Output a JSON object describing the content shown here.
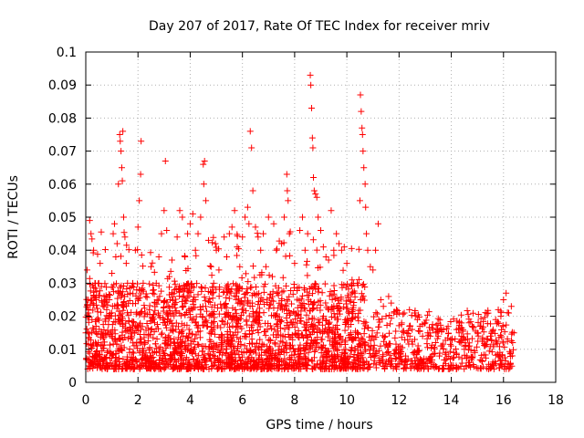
{
  "chart_data": {
    "type": "scatter",
    "title": "Day 207 of 2017, Rate Of TEC Index for receiver mriv",
    "xlabel": "GPS time / hours",
    "ylabel": "ROTI / TECUs",
    "xlim": [
      0,
      18
    ],
    "ylim": [
      0,
      0.1
    ],
    "xticks": [
      0,
      2,
      4,
      6,
      8,
      10,
      12,
      14,
      16,
      18
    ],
    "xtick_labels": [
      "0",
      "2",
      "4",
      "6",
      "8",
      "10",
      "12",
      "14",
      "16",
      "18"
    ],
    "yticks": [
      0,
      0.01,
      0.02,
      0.03,
      0.04,
      0.05,
      0.06,
      0.07,
      0.08,
      0.09,
      0.1
    ],
    "ytick_labels": [
      "0",
      "0.01",
      "0.02",
      "0.03",
      "0.04",
      "0.05",
      "0.06",
      "0.07",
      "0.08",
      "0.09",
      "0.1"
    ],
    "grid": true,
    "marker": "+",
    "color": "#ff0000",
    "series": [
      {
        "name": "ROTI",
        "points": [
          [
            0.05,
            0.034
          ],
          [
            0.1,
            0.021
          ],
          [
            0.15,
            0.049
          ],
          [
            0.2,
            0.045
          ],
          [
            0.3,
            0.04
          ],
          [
            0.35,
            0.03
          ],
          [
            0.4,
            0.025
          ],
          [
            0.5,
            0.03
          ],
          [
            0.55,
            0.036
          ],
          [
            0.6,
            0.029
          ],
          [
            0.7,
            0.026
          ],
          [
            0.8,
            0.022
          ],
          [
            0.9,
            0.025
          ],
          [
            1.0,
            0.033
          ],
          [
            1.05,
            0.045
          ],
          [
            1.1,
            0.048
          ],
          [
            1.15,
            0.038
          ],
          [
            1.2,
            0.042
          ],
          [
            1.25,
            0.06
          ],
          [
            1.3,
            0.075
          ],
          [
            1.32,
            0.073
          ],
          [
            1.35,
            0.07
          ],
          [
            1.38,
            0.065
          ],
          [
            1.4,
            0.061
          ],
          [
            1.42,
            0.076
          ],
          [
            1.45,
            0.05
          ],
          [
            1.5,
            0.044
          ],
          [
            1.55,
            0.036
          ],
          [
            1.6,
            0.03
          ],
          [
            1.7,
            0.027
          ],
          [
            1.8,
            0.03
          ],
          [
            1.9,
            0.04
          ],
          [
            2.0,
            0.047
          ],
          [
            2.05,
            0.055
          ],
          [
            2.1,
            0.063
          ],
          [
            2.12,
            0.073
          ],
          [
            2.2,
            0.03
          ],
          [
            2.3,
            0.026
          ],
          [
            2.5,
            0.035
          ],
          [
            2.6,
            0.028
          ],
          [
            2.7,
            0.03
          ],
          [
            2.8,
            0.038
          ],
          [
            2.9,
            0.045
          ],
          [
            3.0,
            0.052
          ],
          [
            3.05,
            0.067
          ],
          [
            3.1,
            0.046
          ],
          [
            3.2,
            0.032
          ],
          [
            3.3,
            0.037
          ],
          [
            3.4,
            0.028
          ],
          [
            3.5,
            0.044
          ],
          [
            3.6,
            0.052
          ],
          [
            3.7,
            0.05
          ],
          [
            3.8,
            0.038
          ],
          [
            3.9,
            0.045
          ],
          [
            4.0,
            0.048
          ],
          [
            4.1,
            0.051
          ],
          [
            4.2,
            0.04
          ],
          [
            4.3,
            0.045
          ],
          [
            4.4,
            0.05
          ],
          [
            4.5,
            0.066
          ],
          [
            4.52,
            0.06
          ],
          [
            4.55,
            0.067
          ],
          [
            4.6,
            0.055
          ],
          [
            4.7,
            0.043
          ],
          [
            4.8,
            0.035
          ],
          [
            4.9,
            0.03
          ],
          [
            5.0,
            0.04
          ],
          [
            5.1,
            0.034
          ],
          [
            5.3,
            0.044
          ],
          [
            5.4,
            0.038
          ],
          [
            5.5,
            0.045
          ],
          [
            5.6,
            0.047
          ],
          [
            5.7,
            0.052
          ],
          [
            5.8,
            0.041
          ],
          [
            5.9,
            0.035
          ],
          [
            6.0,
            0.044
          ],
          [
            6.1,
            0.05
          ],
          [
            6.2,
            0.053
          ],
          [
            6.25,
            0.048
          ],
          [
            6.3,
            0.076
          ],
          [
            6.35,
            0.071
          ],
          [
            6.4,
            0.058
          ],
          [
            6.5,
            0.047
          ],
          [
            6.6,
            0.044
          ],
          [
            6.7,
            0.04
          ],
          [
            6.8,
            0.045
          ],
          [
            6.9,
            0.035
          ],
          [
            7.0,
            0.05
          ],
          [
            7.2,
            0.048
          ],
          [
            7.3,
            0.04
          ],
          [
            7.5,
            0.042
          ],
          [
            7.6,
            0.05
          ],
          [
            7.7,
            0.063
          ],
          [
            7.72,
            0.058
          ],
          [
            7.75,
            0.055
          ],
          [
            7.8,
            0.045
          ],
          [
            8.0,
            0.036
          ],
          [
            8.2,
            0.046
          ],
          [
            8.3,
            0.05
          ],
          [
            8.4,
            0.04
          ],
          [
            8.5,
            0.045
          ],
          [
            8.6,
            0.093
          ],
          [
            8.62,
            0.09
          ],
          [
            8.65,
            0.083
          ],
          [
            8.68,
            0.074
          ],
          [
            8.7,
            0.071
          ],
          [
            8.72,
            0.062
          ],
          [
            8.75,
            0.058
          ],
          [
            8.8,
            0.057
          ],
          [
            8.85,
            0.056
          ],
          [
            8.9,
            0.05
          ],
          [
            9.0,
            0.046
          ],
          [
            9.1,
            0.041
          ],
          [
            9.2,
            0.038
          ],
          [
            9.3,
            0.037
          ],
          [
            9.4,
            0.052
          ],
          [
            9.5,
            0.04
          ],
          [
            9.6,
            0.045
          ],
          [
            9.7,
            0.042
          ],
          [
            9.8,
            0.04
          ],
          [
            9.9,
            0.041
          ],
          [
            10.0,
            0.036
          ],
          [
            10.2,
            0.031
          ],
          [
            10.4,
            0.03
          ],
          [
            10.5,
            0.055
          ],
          [
            10.52,
            0.087
          ],
          [
            10.55,
            0.082
          ],
          [
            10.58,
            0.077
          ],
          [
            10.6,
            0.075
          ],
          [
            10.62,
            0.07
          ],
          [
            10.65,
            0.065
          ],
          [
            10.7,
            0.06
          ],
          [
            10.72,
            0.053
          ],
          [
            10.75,
            0.045
          ],
          [
            10.8,
            0.04
          ],
          [
            10.9,
            0.035
          ],
          [
            11.0,
            0.034
          ],
          [
            11.1,
            0.04
          ],
          [
            11.2,
            0.048
          ],
          [
            11.3,
            0.025
          ],
          [
            11.4,
            0.023
          ],
          [
            11.5,
            0.02
          ],
          [
            11.6,
            0.026
          ],
          [
            11.7,
            0.024
          ],
          [
            11.8,
            0.021
          ],
          [
            11.9,
            0.022
          ],
          [
            12.0,
            0.021
          ],
          [
            12.1,
            0.018
          ],
          [
            12.2,
            0.021
          ],
          [
            12.3,
            0.015
          ],
          [
            12.4,
            0.017
          ],
          [
            12.5,
            0.016
          ],
          [
            12.6,
            0.013
          ],
          [
            12.7,
            0.019
          ],
          [
            12.8,
            0.017
          ],
          [
            12.9,
            0.014
          ],
          [
            13.0,
            0.018
          ],
          [
            13.1,
            0.015
          ],
          [
            13.2,
            0.014
          ],
          [
            13.3,
            0.016
          ],
          [
            13.4,
            0.012
          ],
          [
            13.5,
            0.014
          ],
          [
            13.6,
            0.011
          ],
          [
            13.7,
            0.016
          ],
          [
            13.8,
            0.009
          ],
          [
            13.9,
            0.005
          ],
          [
            14.0,
            0.011
          ],
          [
            14.1,
            0.009
          ],
          [
            14.2,
            0.016
          ],
          [
            14.3,
            0.015
          ],
          [
            14.4,
            0.012
          ],
          [
            14.5,
            0.01
          ],
          [
            14.6,
            0.008
          ],
          [
            14.7,
            0.011
          ],
          [
            14.8,
            0.017
          ],
          [
            14.9,
            0.009
          ],
          [
            15.0,
            0.015
          ],
          [
            15.1,
            0.017
          ],
          [
            15.2,
            0.013
          ],
          [
            15.3,
            0.011
          ],
          [
            15.4,
            0.013
          ],
          [
            15.5,
            0.014
          ],
          [
            15.6,
            0.016
          ],
          [
            15.7,
            0.019
          ],
          [
            15.8,
            0.022
          ],
          [
            15.9,
            0.02
          ],
          [
            16.0,
            0.025
          ],
          [
            16.1,
            0.027
          ],
          [
            16.2,
            0.021
          ],
          [
            16.3,
            0.023
          ],
          [
            16.35,
            0.012
          ],
          [
            16.4,
            0.015
          ]
        ]
      }
    ],
    "dense_band": {
      "description_data": "dense scatter of ROTI values between 0 and 10.7 hours",
      "x_range": [
        0,
        10.7
      ],
      "y_range": [
        0.004,
        0.03
      ],
      "n_points": 2200
    },
    "late_band": {
      "x_range": [
        10.7,
        16.4
      ],
      "y_range": [
        0.004,
        0.022
      ],
      "n_points": 500
    }
  }
}
